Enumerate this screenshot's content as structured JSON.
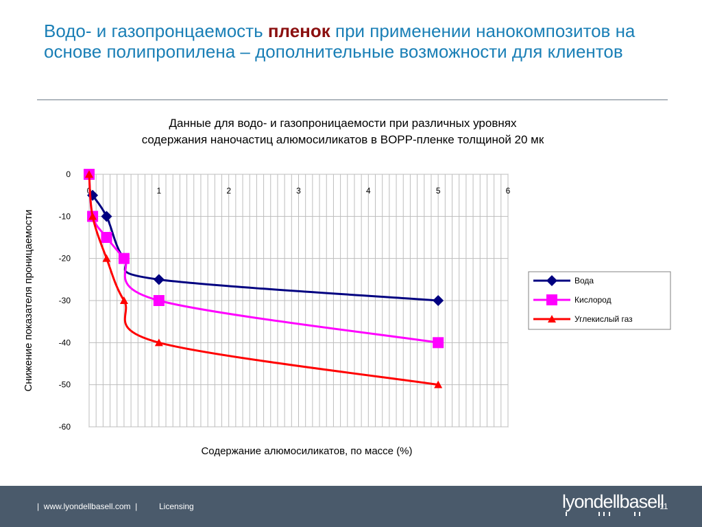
{
  "slide": {
    "title_part1": "Водо- и газопронцаемость ",
    "title_accent": "пленок",
    "title_part2": " при применении нанокомпозитов на основе полипропилена – дополнительные возможности для клиентов",
    "accent_color": "#8b1010",
    "title_color": "#1a7fb6"
  },
  "footer": {
    "left_text": "|  www.lyondellbasell.com  |",
    "licensing": "Licensing",
    "brand": "lyondellbasell",
    "page_number": "11",
    "background": "#4a5a6b"
  },
  "chart_data": {
    "type": "line",
    "title_line1": "Данные для водо- и газопроницаемости при различных уровнях",
    "title_line2": "содержания наночастиц алюмосиликатов в BOPP-пленке толщиной 20 мк",
    "xlabel": "Содержание алюмосиликатов, по массе (%)",
    "ylabel": "Снижение показателя проницаемости",
    "xlim": [
      0,
      6
    ],
    "ylim": [
      -60,
      0
    ],
    "x_ticks": [
      "0",
      "1",
      "2",
      "3",
      "4",
      "5",
      "6"
    ],
    "y_ticks": [
      "0",
      "-10",
      "-20",
      "-30",
      "-40",
      "-50",
      "-60"
    ],
    "grid": true,
    "legend_position": "right",
    "series": [
      {
        "name": "Вода",
        "color": "#000080",
        "marker": "diamond",
        "points": [
          [
            0.05,
            -5
          ],
          [
            0.25,
            -10
          ],
          [
            0.5,
            -20
          ],
          [
            1,
            -25
          ],
          [
            5,
            -30
          ]
        ]
      },
      {
        "name": "Кислород",
        "color": "#ff00ff",
        "marker": "square",
        "points": [
          [
            0,
            0
          ],
          [
            0.05,
            -10
          ],
          [
            0.25,
            -15
          ],
          [
            0.5,
            -20
          ],
          [
            1,
            -30
          ],
          [
            5,
            -40
          ]
        ]
      },
      {
        "name": "Углекислый газ",
        "color": "#ff0000",
        "marker": "triangle",
        "points": [
          [
            0,
            0
          ],
          [
            0.05,
            -10
          ],
          [
            0.25,
            -20
          ],
          [
            0.5,
            -30
          ],
          [
            1,
            -40
          ],
          [
            5,
            -50
          ]
        ]
      }
    ]
  }
}
